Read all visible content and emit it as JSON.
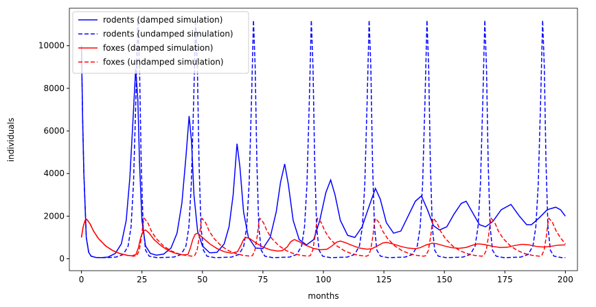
{
  "chart_data": {
    "type": "line",
    "x_label": "months",
    "y_label": "individuals",
    "xlim": [
      -5,
      205
    ],
    "xticks": [
      0,
      25,
      50,
      75,
      100,
      125,
      150,
      175,
      200
    ],
    "ylim": [
      -560,
      11760
    ],
    "yticks": [
      0,
      2000,
      4000,
      6000,
      8000,
      10000
    ],
    "legend": "upper left",
    "series": [
      {
        "name": "rodents (damped simulation)",
        "color": "#0000ff",
        "linestyle": "solid",
        "x": [
          0,
          0.5,
          1,
          2,
          3,
          4,
          6,
          8,
          11,
          14,
          16.5,
          18.5,
          20,
          21.3,
          22.4,
          23.3,
          24,
          25,
          26.5,
          28.5,
          31,
          34,
          37,
          39.5,
          41.5,
          43.2,
          44.5,
          45.5,
          46.5,
          48,
          50,
          53,
          56,
          59,
          61,
          62.7,
          64.3,
          65.5,
          67,
          69,
          72,
          75,
          78,
          80.5,
          82.3,
          84,
          85.5,
          87.5,
          90,
          93,
          96,
          98.5,
          101,
          103,
          104.8,
          107,
          110,
          113,
          116,
          119,
          121.5,
          123.5,
          126,
          129,
          132,
          135,
          138,
          140.5,
          143,
          145.5,
          148,
          151,
          154,
          157,
          159,
          161.5,
          164.5,
          167,
          170,
          173.5,
          177.5,
          181,
          184,
          186,
          189,
          192.5,
          196,
          198,
          200
        ],
        "values": [
          10000,
          6500,
          4000,
          1000,
          300,
          120,
          60,
          50,
          80,
          250,
          700,
          1800,
          3800,
          6500,
          8900,
          7500,
          4500,
          1800,
          600,
          250,
          170,
          220,
          500,
          1200,
          2600,
          4800,
          6700,
          5500,
          3000,
          1300,
          600,
          280,
          300,
          700,
          1500,
          3000,
          5400,
          4300,
          2200,
          1000,
          500,
          480,
          1000,
          2200,
          3600,
          4450,
          3500,
          1800,
          900,
          650,
          900,
          1800,
          3100,
          3700,
          3000,
          1800,
          1100,
          1000,
          1500,
          2500,
          3300,
          2800,
          1700,
          1200,
          1300,
          2000,
          2700,
          2950,
          2300,
          1550,
          1350,
          1500,
          2100,
          2600,
          2700,
          2200,
          1600,
          1500,
          1750,
          2300,
          2550,
          2000,
          1600,
          1600,
          1900,
          2300,
          2420,
          2300,
          2000
        ]
      },
      {
        "name": "rodents (undamped simulation)",
        "color": "#0000ff",
        "linestyle": "dashed",
        "x": [
          0,
          0.5,
          1,
          2,
          3,
          4,
          6,
          10,
          14.3,
          17.3,
          19.3,
          20.5,
          21.5,
          22.5,
          23.3,
          24,
          24.7,
          25.5,
          26.5,
          28,
          31.3,
          38.2,
          41.2,
          43.2,
          44.4,
          45.4,
          46.4,
          47.2,
          47.9,
          48.6,
          49.4,
          50.4,
          51.9,
          55.2,
          62.1,
          65.1,
          67.1,
          68.3,
          69.3,
          70.3,
          71.1,
          71.8,
          72.5,
          73.3,
          74.3,
          75.8,
          79.1,
          86,
          89,
          91,
          92.2,
          93.2,
          94.2,
          95,
          95.7,
          96.4,
          97.2,
          98.2,
          99.7,
          103,
          109.9,
          112.9,
          114.9,
          116.1,
          117.1,
          118.1,
          118.9,
          119.6,
          120.3,
          121.1,
          122.1,
          123.6,
          126.9,
          133.8,
          136.8,
          138.8,
          140,
          141,
          142,
          142.8,
          143.5,
          144.2,
          145,
          146,
          147.5,
          150.8,
          157.7,
          160.7,
          162.7,
          163.9,
          164.9,
          165.9,
          166.7,
          167.4,
          168.1,
          168.9,
          169.9,
          171.4,
          174.7,
          181.6,
          184.6,
          186.6,
          187.8,
          188.8,
          189.8,
          190.6,
          191.3,
          192,
          192.8,
          193.8,
          195.3,
          198.6,
          200
        ],
        "values": [
          10000,
          6500,
          4000,
          1000,
          300,
          120,
          60,
          50,
          80,
          200,
          600,
          1500,
          3500,
          7500,
          11200,
          9000,
          4500,
          1500,
          400,
          120,
          50,
          80,
          200,
          600,
          1500,
          3500,
          7500,
          11200,
          9000,
          4500,
          1500,
          400,
          120,
          50,
          80,
          200,
          600,
          1500,
          3500,
          7500,
          11200,
          9000,
          4500,
          1500,
          400,
          120,
          50,
          80,
          200,
          600,
          1500,
          3500,
          7500,
          11200,
          9000,
          4500,
          1500,
          400,
          120,
          50,
          80,
          200,
          600,
          1500,
          3500,
          7500,
          11200,
          9000,
          4500,
          1500,
          400,
          120,
          50,
          80,
          200,
          600,
          1500,
          3500,
          7500,
          11200,
          9000,
          4500,
          1500,
          400,
          120,
          50,
          80,
          200,
          600,
          1500,
          3500,
          7500,
          11200,
          9000,
          4500,
          1500,
          400,
          120,
          50,
          80,
          200,
          600,
          1500,
          3500,
          7500,
          11200,
          9000,
          4500,
          1500,
          400,
          120,
          50,
          50
        ]
      },
      {
        "name": "foxes (damped simulation)",
        "color": "#ff0000",
        "linestyle": "solid",
        "x": [
          0,
          0.7,
          1.5,
          2.2,
          3.5,
          5,
          7,
          10,
          13,
          16,
          19,
          21,
          22.5,
          23.5,
          24.5,
          25.5,
          26.5,
          28,
          30,
          33,
          36,
          39,
          42,
          44,
          45,
          46,
          47,
          48,
          50,
          53,
          56,
          59,
          62,
          64.5,
          66,
          67,
          68,
          69.5,
          72,
          75,
          78,
          81,
          83,
          85,
          86.5,
          88,
          90,
          93,
          96,
          99,
          101.5,
          103.5,
          105.5,
          107,
          109,
          112,
          115,
          118,
          120,
          122,
          124.5,
          126,
          128.5,
          132,
          135,
          138,
          140,
          142.5,
          145,
          147,
          150,
          153,
          156,
          159,
          162,
          164,
          166.5,
          170,
          173,
          176,
          179,
          182,
          185,
          188,
          191,
          194,
          197,
          200
        ],
        "values": [
          1000,
          1500,
          1800,
          1850,
          1650,
          1300,
          950,
          600,
          380,
          240,
          160,
          140,
          200,
          500,
          1000,
          1300,
          1350,
          1200,
          900,
          600,
          380,
          250,
          180,
          200,
          500,
          900,
          1150,
          1200,
          1000,
          700,
          480,
          330,
          260,
          330,
          650,
          900,
          1000,
          950,
          750,
          550,
          420,
          360,
          380,
          550,
          800,
          900,
          800,
          620,
          480,
          420,
          450,
          600,
          780,
          830,
          760,
          620,
          500,
          450,
          470,
          580,
          740,
          770,
          700,
          580,
          500,
          470,
          520,
          650,
          730,
          700,
          600,
          520,
          490,
          530,
          650,
          700,
          670,
          580,
          530,
          540,
          620,
          680,
          650,
          580,
          550,
          580,
          640,
          650
        ]
      },
      {
        "name": "foxes (undamped simulation)",
        "color": "#ff0000",
        "linestyle": "dashed",
        "x": [
          0,
          0.7,
          1.5,
          2.2,
          3.5,
          5,
          7,
          10,
          13,
          16,
          19,
          21.5,
          22.9,
          23.9,
          24.9,
          25.4,
          25.9,
          27.4,
          28.9,
          30.9,
          33.9,
          36.9,
          39.9,
          42.9,
          45.9,
          46.8,
          47.8,
          48.8,
          49.3,
          49.8,
          51.3,
          52.8,
          54.8,
          57.8,
          60.8,
          63.8,
          66.8,
          69.8,
          70.7,
          71.7,
          72.7,
          73.2,
          73.7,
          75.2,
          76.7,
          78.7,
          81.7,
          84.7,
          87.7,
          90.7,
          93.7,
          94.6,
          95.6,
          96.6,
          97.1,
          97.6,
          99.1,
          100.6,
          102.6,
          105.6,
          108.6,
          111.6,
          114.6,
          117.6,
          118.5,
          119.5,
          120.5,
          121,
          121.5,
          123,
          124.5,
          126.5,
          129.5,
          132.5,
          135.5,
          138.5,
          141.5,
          142.4,
          143.4,
          144.4,
          144.9,
          145.4,
          146.9,
          148.4,
          150.4,
          153.4,
          156.4,
          159.4,
          162.4,
          165.4,
          166.3,
          167.3,
          168.3,
          168.8,
          169.3,
          170.8,
          172.3,
          174.3,
          177.3,
          180.3,
          183.3,
          186.3,
          189.3,
          190.2,
          191.2,
          192.2,
          192.7,
          193.2,
          194.7,
          196.2,
          198.2,
          200
        ],
        "values": [
          1000,
          1500,
          1800,
          1850,
          1650,
          1300,
          950,
          600,
          380,
          240,
          160,
          120,
          150,
          400,
          1100,
          1600,
          1900,
          1700,
          1300,
          950,
          600,
          380,
          240,
          160,
          120,
          150,
          400,
          1100,
          1600,
          1900,
          1700,
          1300,
          950,
          600,
          380,
          240,
          160,
          120,
          150,
          400,
          1100,
          1600,
          1900,
          1700,
          1300,
          950,
          600,
          380,
          240,
          160,
          120,
          150,
          400,
          1100,
          1600,
          1900,
          1700,
          1300,
          950,
          600,
          380,
          240,
          160,
          120,
          150,
          400,
          1100,
          1600,
          1900,
          1700,
          1300,
          950,
          600,
          380,
          240,
          160,
          120,
          150,
          400,
          1100,
          1600,
          1900,
          1700,
          1300,
          950,
          600,
          380,
          240,
          160,
          120,
          150,
          400,
          1100,
          1600,
          1900,
          1700,
          1300,
          950,
          600,
          380,
          240,
          160,
          120,
          150,
          400,
          1100,
          1600,
          1900,
          1700,
          1300,
          950,
          700
        ]
      }
    ]
  }
}
